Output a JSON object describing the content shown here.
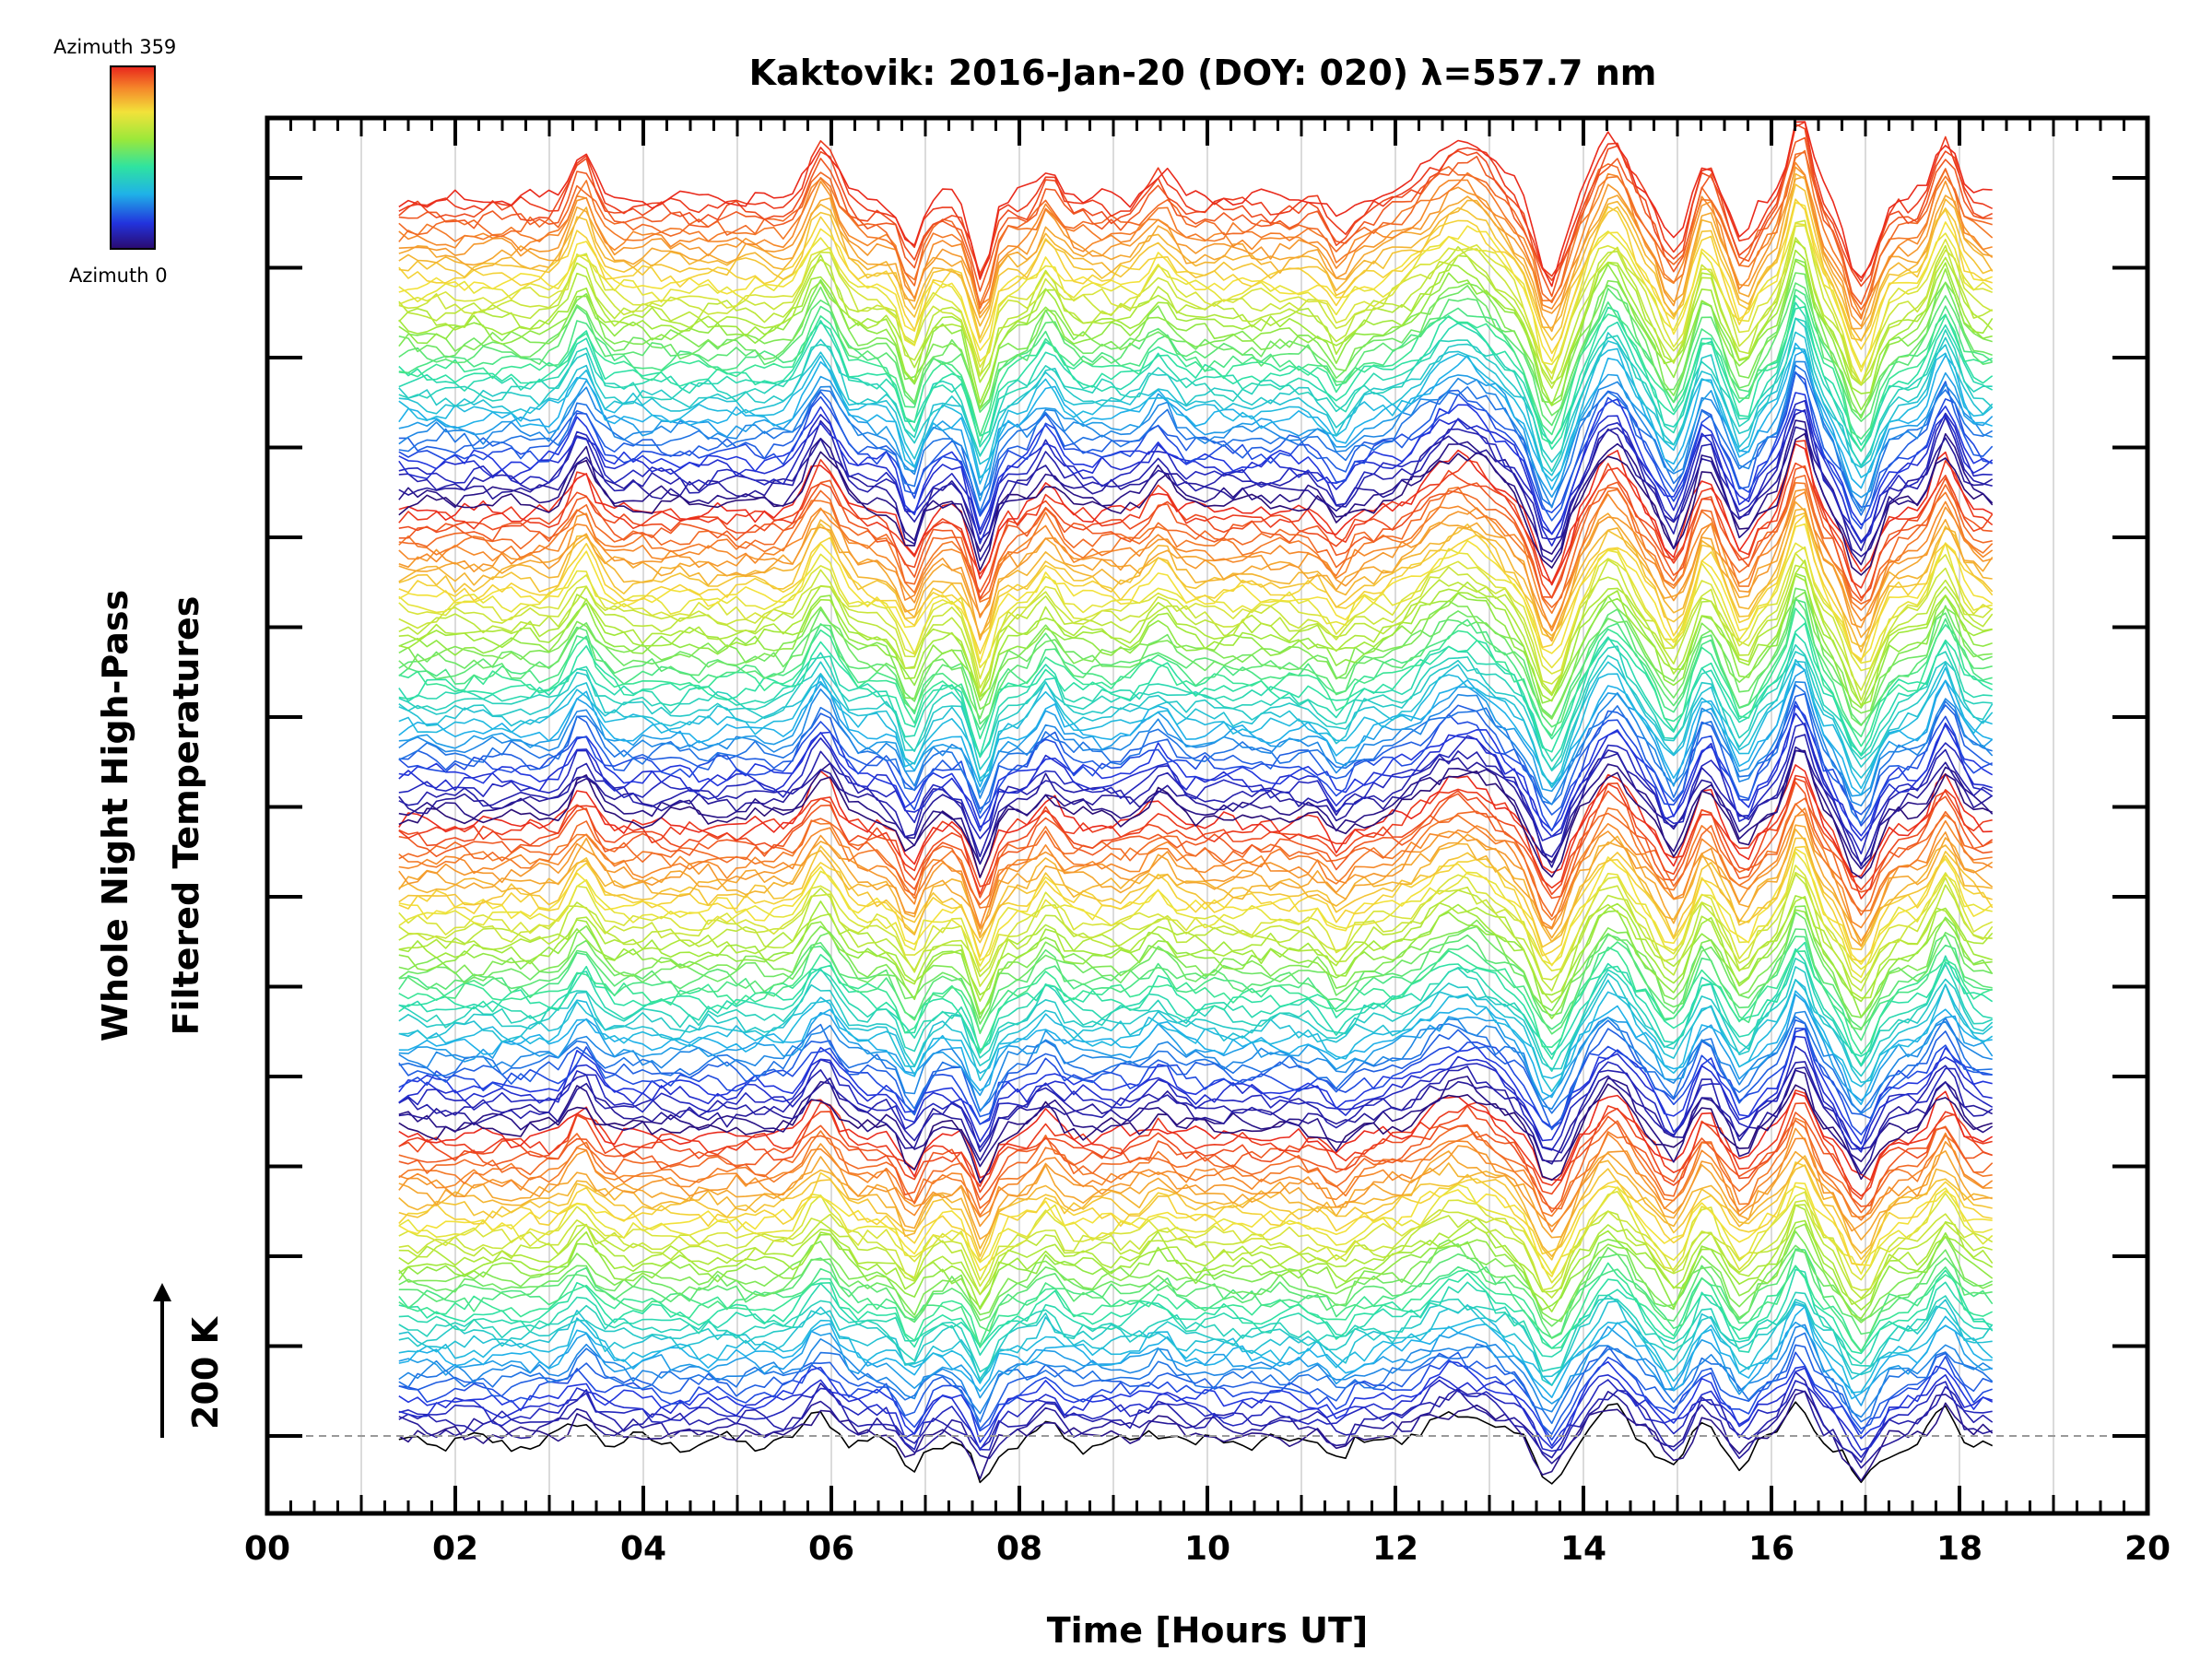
{
  "chart_data": {
    "type": "line",
    "title": "Kaktovik: 2016-Jan-20 (DOY: 020) λ=557.7 nm",
    "xlabel": "Time [Hours UT]",
    "ylabel_lines": [
      "Whole Night High-Pass",
      "Filtered Temperatures"
    ],
    "xlim": [
      0,
      20
    ],
    "x_tick_labels": [
      "00",
      "02",
      "04",
      "06",
      "08",
      "10",
      "12",
      "14",
      "16",
      "18",
      "20"
    ],
    "x_tick_values": [
      0,
      2,
      4,
      6,
      8,
      10,
      12,
      14,
      16,
      18,
      20
    ],
    "data_start_hour": 1.4,
    "data_end_hour": 18.35,
    "scale_bar_label": "200 K",
    "colorbar": {
      "top_label": "Azimuth  359",
      "bottom_label": "Azimuth  0",
      "colormap": "rainbow",
      "stops": [
        "#2a0a6e",
        "#2233dd",
        "#1fb2e8",
        "#2fe3a0",
        "#9be83a",
        "#f2e23a",
        "#f5872a",
        "#e8241c"
      ]
    },
    "series_count": 176,
    "vertical_offset_hint": "stacked traces, one per azimuth, offset vertically",
    "grid": true,
    "lines_color_source": "azimuth"
  }
}
